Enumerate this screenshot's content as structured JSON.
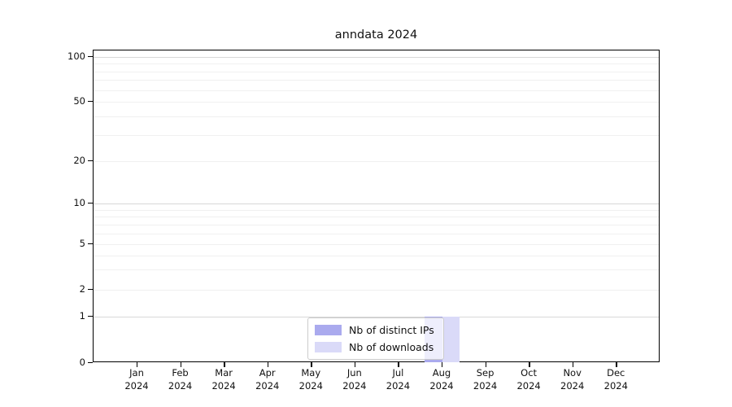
{
  "chart_data": {
    "type": "bar",
    "title": "anndata 2024",
    "categories": [
      "Jan",
      "Feb",
      "Mar",
      "Apr",
      "May",
      "Jun",
      "Jul",
      "Aug",
      "Sep",
      "Oct",
      "Nov",
      "Dec"
    ],
    "year_label": "2024",
    "series": [
      {
        "name": "Nb of distinct IPs",
        "color": "#aaaaee",
        "values": [
          0,
          0,
          0,
          0,
          0,
          0,
          0,
          1,
          0,
          0,
          0,
          0
        ]
      },
      {
        "name": "Nb of downloads",
        "color": "#dadaf8",
        "values": [
          0,
          0,
          0,
          0,
          0,
          0,
          0,
          1,
          0,
          0,
          0,
          0
        ]
      }
    ],
    "y_ticks": [
      0,
      1,
      2,
      5,
      10,
      20,
      50,
      100
    ],
    "ylim": [
      0,
      100
    ],
    "yscale": "symlog",
    "grid": true,
    "legend": {
      "position": "lower center inside",
      "entries": [
        "Nb of distinct IPs",
        "Nb of downloads"
      ]
    }
  }
}
